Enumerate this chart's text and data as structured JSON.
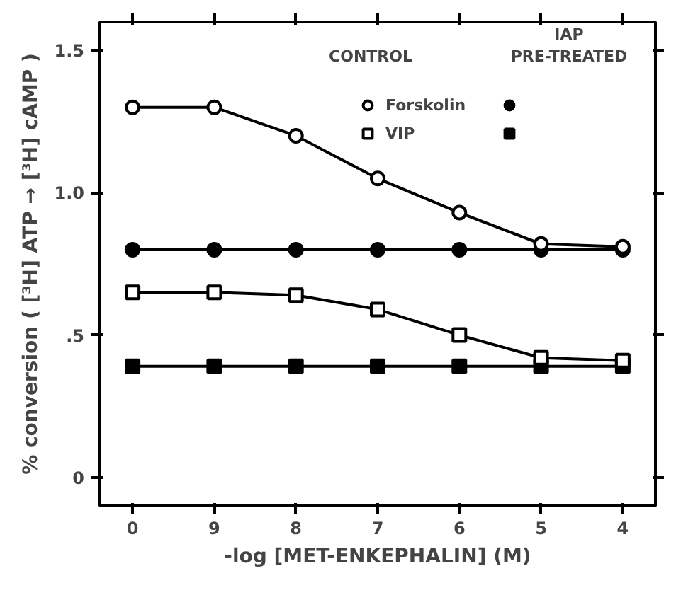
{
  "chart_data": {
    "type": "line",
    "xlabel": "-log [MET-ENKEPHALIN] (M)",
    "ylabel": "% conversion ( [³H] ATP → [³H] cAMP )",
    "categories": [
      "0",
      "9",
      "8",
      "7",
      "6",
      "5",
      "4"
    ],
    "ylim": [
      -0.1,
      1.6
    ],
    "yticks": [
      0,
      {
        "value": 0.5,
        "label": ".5"
      },
      {
        "value": 1.0,
        "label": "1.0"
      },
      {
        "value": 1.5,
        "label": "1.5"
      }
    ],
    "grid": false,
    "legend": "top right",
    "annotations": [
      "CONTROL",
      "IAP\nPRE-TREATED"
    ],
    "series": [
      {
        "name": "Forskolin",
        "color": "#000000",
        "marker": "circle_open",
        "values": [
          1.3,
          1.3,
          1.2,
          1.05,
          0.93,
          0.82,
          0.81
        ]
      },
      {
        "color": "#000000",
        "marker": "circle",
        "values": [
          0.8,
          0.8,
          0.8,
          0.8,
          0.8,
          0.8,
          0.8
        ]
      },
      {
        "name": "VIP",
        "color": "#000000",
        "marker": "square_open",
        "values": [
          0.65,
          0.65,
          0.64,
          0.59,
          0.5,
          0.42,
          0.41
        ]
      },
      {
        "color": "#000000",
        "marker": "square",
        "values": [
          0.39,
          0.39,
          0.39,
          0.39,
          0.39,
          0.39,
          0.39
        ]
      }
    ]
  }
}
